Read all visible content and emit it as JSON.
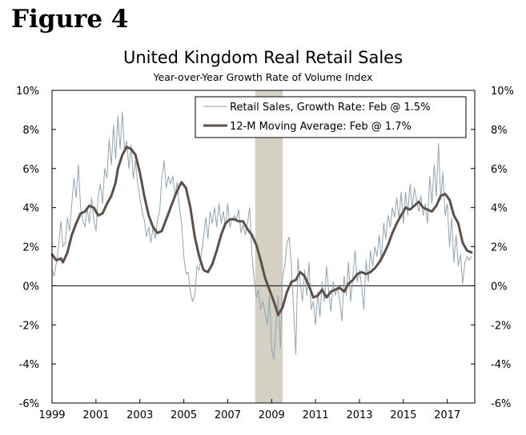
{
  "figure_label": "Figure 4",
  "chart_data": {
    "type": "line",
    "title": "United Kingdom Real Retail Sales",
    "subtitle": "Year-over-Year Growth Rate of Volume Index",
    "x_range": [
      1999,
      2018.25
    ],
    "ylim": [
      -6,
      10
    ],
    "yticks": [
      "10%",
      "8%",
      "6%",
      "4%",
      "2%",
      "0%",
      "-2%",
      "-4%",
      "-6%"
    ],
    "ytick_values": [
      10,
      8,
      6,
      4,
      2,
      0,
      -2,
      -4,
      -6
    ],
    "xticks": [
      "1999",
      "2001",
      "2003",
      "2005",
      "2007",
      "2009",
      "2011",
      "2013",
      "2015",
      "2017"
    ],
    "xtick_values": [
      1999,
      2001,
      2003,
      2005,
      2007,
      2009,
      2011,
      2013,
      2015,
      2017
    ],
    "recession": {
      "start": 2008.25,
      "end": 2009.5,
      "color": "#d4d0c4"
    },
    "legend_position": "top-right",
    "series": [
      {
        "name": "Retail Sales, Growth Rate: Feb @ 1.5%",
        "color": "#8fa3b3",
        "style": "thin",
        "points": [
          [
            1999.0,
            0.8
          ],
          [
            1999.1,
            0.5
          ],
          [
            1999.2,
            1.2
          ],
          [
            1999.3,
            2.0
          ],
          [
            1999.4,
            3.3
          ],
          [
            1999.5,
            2.0
          ],
          [
            1999.6,
            2.2
          ],
          [
            1999.7,
            3.5
          ],
          [
            1999.8,
            2.8
          ],
          [
            1999.9,
            4.2
          ],
          [
            2000.0,
            5.5
          ],
          [
            2000.1,
            4.5
          ],
          [
            2000.2,
            6.2
          ],
          [
            2000.3,
            4.0
          ],
          [
            2000.4,
            3.4
          ],
          [
            2000.5,
            3.0
          ],
          [
            2000.6,
            4.0
          ],
          [
            2000.7,
            3.2
          ],
          [
            2000.8,
            4.5
          ],
          [
            2000.9,
            3.4
          ],
          [
            2001.0,
            2.8
          ],
          [
            2001.1,
            4.6
          ],
          [
            2001.2,
            5.2
          ],
          [
            2001.3,
            4.2
          ],
          [
            2001.4,
            6.0
          ],
          [
            2001.5,
            5.5
          ],
          [
            2001.6,
            7.5
          ],
          [
            2001.7,
            6.2
          ],
          [
            2001.8,
            8.2
          ],
          [
            2001.9,
            6.5
          ],
          [
            2002.0,
            8.7
          ],
          [
            2002.1,
            7.0
          ],
          [
            2002.2,
            8.9
          ],
          [
            2002.3,
            7.0
          ],
          [
            2002.4,
            7.4
          ],
          [
            2002.5,
            6.0
          ],
          [
            2002.6,
            7.2
          ],
          [
            2002.7,
            5.5
          ],
          [
            2002.8,
            6.4
          ],
          [
            2002.9,
            5.2
          ],
          [
            2003.0,
            4.5
          ],
          [
            2003.1,
            3.8
          ],
          [
            2003.2,
            3.4
          ],
          [
            2003.3,
            2.5
          ],
          [
            2003.4,
            3.0
          ],
          [
            2003.5,
            2.2
          ],
          [
            2003.6,
            3.0
          ],
          [
            2003.7,
            2.4
          ],
          [
            2003.8,
            3.4
          ],
          [
            2003.9,
            3.8
          ],
          [
            2004.0,
            5.5
          ],
          [
            2004.1,
            6.4
          ],
          [
            2004.2,
            5.0
          ],
          [
            2004.3,
            5.6
          ],
          [
            2004.4,
            5.2
          ],
          [
            2004.5,
            5.6
          ],
          [
            2004.6,
            4.6
          ],
          [
            2004.7,
            5.3
          ],
          [
            2004.8,
            4.0
          ],
          [
            2004.9,
            3.2
          ],
          [
            2005.0,
            1.5
          ],
          [
            2005.1,
            0.6
          ],
          [
            2005.2,
            0.7
          ],
          [
            2005.3,
            -0.3
          ],
          [
            2005.4,
            -0.8
          ],
          [
            2005.5,
            -0.5
          ],
          [
            2005.6,
            1.0
          ],
          [
            2005.7,
            0.8
          ],
          [
            2005.8,
            1.6
          ],
          [
            2005.9,
            2.5
          ],
          [
            2006.0,
            3.5
          ],
          [
            2006.1,
            2.4
          ],
          [
            2006.2,
            3.8
          ],
          [
            2006.3,
            3.2
          ],
          [
            2006.4,
            4.0
          ],
          [
            2006.5,
            3.0
          ],
          [
            2006.6,
            4.2
          ],
          [
            2006.7,
            3.2
          ],
          [
            2006.8,
            3.8
          ],
          [
            2006.9,
            3.0
          ],
          [
            2007.0,
            4.2
          ],
          [
            2007.1,
            3.0
          ],
          [
            2007.2,
            3.4
          ],
          [
            2007.3,
            3.6
          ],
          [
            2007.4,
            3.4
          ],
          [
            2007.5,
            3.9
          ],
          [
            2007.6,
            2.7
          ],
          [
            2007.7,
            3.1
          ],
          [
            2007.8,
            2.6
          ],
          [
            2007.9,
            3.2
          ],
          [
            2008.0,
            4.0
          ],
          [
            2008.1,
            1.6
          ],
          [
            2008.2,
            0.4
          ],
          [
            2008.3,
            -0.6
          ],
          [
            2008.4,
            -0.2
          ],
          [
            2008.5,
            -1.2
          ],
          [
            2008.6,
            -0.8
          ],
          [
            2008.7,
            -1.4
          ],
          [
            2008.8,
            -2.0
          ],
          [
            2008.9,
            -0.5
          ],
          [
            2009.0,
            -3.2
          ],
          [
            2009.1,
            -3.8
          ],
          [
            2009.2,
            -2.0
          ],
          [
            2009.3,
            -0.5
          ],
          [
            2009.4,
            -3.2
          ],
          [
            2009.5,
            0.5
          ],
          [
            2009.6,
            1.0
          ],
          [
            2009.7,
            2.2
          ],
          [
            2009.8,
            2.5
          ],
          [
            2009.9,
            1.0
          ],
          [
            2010.0,
            -1.2
          ],
          [
            2010.1,
            -3.5
          ],
          [
            2010.2,
            1.4
          ],
          [
            2010.3,
            0.2
          ],
          [
            2010.4,
            -0.8
          ],
          [
            2010.5,
            0.8
          ],
          [
            2010.6,
            -0.5
          ],
          [
            2010.7,
            1.2
          ],
          [
            2010.8,
            -1.2
          ],
          [
            2010.9,
            -0.8
          ],
          [
            2011.0,
            -2.0
          ],
          [
            2011.1,
            -0.3
          ],
          [
            2011.2,
            -1.6
          ],
          [
            2011.3,
            0.2
          ],
          [
            2011.4,
            -0.8
          ],
          [
            2011.5,
            1.0
          ],
          [
            2011.6,
            -0.3
          ],
          [
            2011.7,
            -1.3
          ],
          [
            2011.8,
            0.2
          ],
          [
            2011.9,
            -0.5
          ],
          [
            2012.0,
            0.0
          ],
          [
            2012.1,
            -0.8
          ],
          [
            2012.2,
            -1.8
          ],
          [
            2012.3,
            0.5
          ],
          [
            2012.4,
            -0.5
          ],
          [
            2012.5,
            1.2
          ],
          [
            2012.6,
            -0.8
          ],
          [
            2012.7,
            0.5
          ],
          [
            2012.8,
            1.8
          ],
          [
            2012.9,
            0.2
          ],
          [
            2013.0,
            0.8
          ],
          [
            2013.1,
            0.0
          ],
          [
            2013.2,
            -1.2
          ],
          [
            2013.3,
            1.3
          ],
          [
            2013.4,
            0.2
          ],
          [
            2013.5,
            1.8
          ],
          [
            2013.6,
            1.0
          ],
          [
            2013.7,
            2.0
          ],
          [
            2013.8,
            1.5
          ],
          [
            2013.9,
            2.6
          ],
          [
            2014.0,
            1.2
          ],
          [
            2014.1,
            3.2
          ],
          [
            2014.2,
            2.4
          ],
          [
            2014.3,
            3.6
          ],
          [
            2014.4,
            3.0
          ],
          [
            2014.5,
            4.0
          ],
          [
            2014.6,
            3.5
          ],
          [
            2014.7,
            4.5
          ],
          [
            2014.8,
            3.4
          ],
          [
            2014.9,
            4.8
          ],
          [
            2015.0,
            3.2
          ],
          [
            2015.1,
            4.8
          ],
          [
            2015.2,
            3.6
          ],
          [
            2015.3,
            5.2
          ],
          [
            2015.4,
            4.0
          ],
          [
            2015.5,
            5.0
          ],
          [
            2015.6,
            4.4
          ],
          [
            2015.7,
            3.8
          ],
          [
            2015.8,
            4.6
          ],
          [
            2015.9,
            3.6
          ],
          [
            2016.0,
            4.2
          ],
          [
            2016.1,
            3.2
          ],
          [
            2016.2,
            5.6
          ],
          [
            2016.3,
            4.2
          ],
          [
            2016.4,
            6.2
          ],
          [
            2016.5,
            4.6
          ],
          [
            2016.6,
            7.3
          ],
          [
            2016.7,
            4.4
          ],
          [
            2016.8,
            5.8
          ],
          [
            2016.9,
            3.6
          ],
          [
            2017.0,
            4.2
          ],
          [
            2017.1,
            2.0
          ],
          [
            2017.2,
            3.5
          ],
          [
            2017.3,
            1.2
          ],
          [
            2017.4,
            2.6
          ],
          [
            2017.5,
            1.0
          ],
          [
            2017.6,
            1.6
          ],
          [
            2017.7,
            0.1
          ],
          [
            2017.8,
            1.2
          ],
          [
            2017.9,
            1.5
          ],
          [
            2018.0,
            1.3
          ],
          [
            2018.1,
            1.5
          ]
        ]
      },
      {
        "name": "12-M Moving Average: Feb @ 1.7%",
        "color": "#5e5048",
        "style": "thick",
        "points": [
          [
            1999.0,
            1.6
          ],
          [
            1999.2,
            1.3
          ],
          [
            1999.4,
            1.4
          ],
          [
            1999.5,
            1.2
          ],
          [
            1999.7,
            1.7
          ],
          [
            1999.9,
            2.6
          ],
          [
            2000.1,
            3.2
          ],
          [
            2000.3,
            3.7
          ],
          [
            2000.5,
            3.8
          ],
          [
            2000.7,
            4.1
          ],
          [
            2000.9,
            4.0
          ],
          [
            2001.1,
            3.6
          ],
          [
            2001.3,
            3.7
          ],
          [
            2001.5,
            4.2
          ],
          [
            2001.7,
            4.6
          ],
          [
            2001.9,
            5.3
          ],
          [
            2002.0,
            6.0
          ],
          [
            2002.2,
            6.7
          ],
          [
            2002.4,
            7.1
          ],
          [
            2002.6,
            7.0
          ],
          [
            2002.8,
            6.7
          ],
          [
            2003.0,
            5.8
          ],
          [
            2003.2,
            4.6
          ],
          [
            2003.4,
            3.6
          ],
          [
            2003.6,
            3.0
          ],
          [
            2003.8,
            2.7
          ],
          [
            2004.0,
            2.8
          ],
          [
            2004.2,
            3.4
          ],
          [
            2004.4,
            4.0
          ],
          [
            2004.6,
            4.6
          ],
          [
            2004.8,
            5.1
          ],
          [
            2004.9,
            5.3
          ],
          [
            2005.1,
            5.0
          ],
          [
            2005.3,
            4.0
          ],
          [
            2005.5,
            2.5
          ],
          [
            2005.7,
            1.5
          ],
          [
            2005.9,
            0.8
          ],
          [
            2006.1,
            0.7
          ],
          [
            2006.3,
            1.1
          ],
          [
            2006.5,
            1.8
          ],
          [
            2006.7,
            2.6
          ],
          [
            2006.9,
            3.2
          ],
          [
            2007.1,
            3.4
          ],
          [
            2007.3,
            3.4
          ],
          [
            2007.5,
            3.3
          ],
          [
            2007.7,
            3.3
          ],
          [
            2007.9,
            2.9
          ],
          [
            2008.1,
            2.6
          ],
          [
            2008.3,
            2.1
          ],
          [
            2008.5,
            1.3
          ],
          [
            2008.7,
            0.4
          ],
          [
            2008.9,
            -0.2
          ],
          [
            2009.1,
            -0.8
          ],
          [
            2009.3,
            -1.5
          ],
          [
            2009.5,
            -1.1
          ],
          [
            2009.7,
            -0.3
          ],
          [
            2009.9,
            0.2
          ],
          [
            2010.1,
            0.3
          ],
          [
            2010.3,
            0.7
          ],
          [
            2010.5,
            0.5
          ],
          [
            2010.7,
            0.0
          ],
          [
            2010.9,
            -0.6
          ],
          [
            2011.1,
            -0.5
          ],
          [
            2011.3,
            -0.2
          ],
          [
            2011.5,
            -0.6
          ],
          [
            2011.7,
            -0.3
          ],
          [
            2011.9,
            -0.2
          ],
          [
            2012.1,
            -0.1
          ],
          [
            2012.3,
            -0.3
          ],
          [
            2012.5,
            0.1
          ],
          [
            2012.7,
            0.3
          ],
          [
            2012.9,
            0.6
          ],
          [
            2013.1,
            0.7
          ],
          [
            2013.3,
            0.6
          ],
          [
            2013.5,
            0.7
          ],
          [
            2013.7,
            0.9
          ],
          [
            2013.9,
            1.2
          ],
          [
            2014.1,
            1.6
          ],
          [
            2014.3,
            2.1
          ],
          [
            2014.5,
            2.7
          ],
          [
            2014.7,
            3.2
          ],
          [
            2014.9,
            3.6
          ],
          [
            2015.1,
            4.0
          ],
          [
            2015.3,
            3.9
          ],
          [
            2015.5,
            4.1
          ],
          [
            2015.7,
            4.3
          ],
          [
            2015.9,
            4.0
          ],
          [
            2016.1,
            3.9
          ],
          [
            2016.3,
            3.8
          ],
          [
            2016.5,
            4.1
          ],
          [
            2016.7,
            4.6
          ],
          [
            2016.9,
            4.7
          ],
          [
            2017.1,
            4.4
          ],
          [
            2017.3,
            3.6
          ],
          [
            2017.5,
            3.2
          ],
          [
            2017.7,
            2.2
          ],
          [
            2017.9,
            1.8
          ],
          [
            2018.1,
            1.7
          ]
        ]
      }
    ]
  }
}
